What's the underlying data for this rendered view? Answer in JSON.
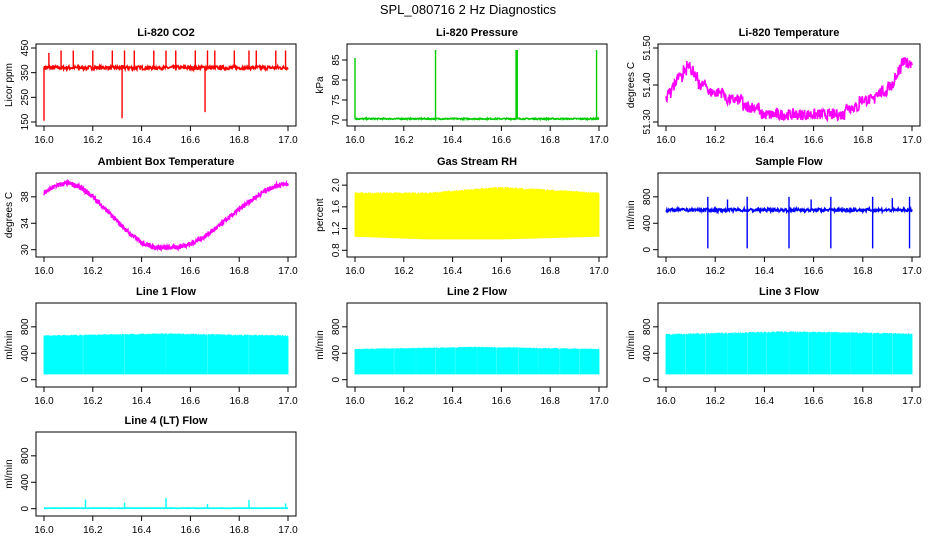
{
  "figure_title": "SPL_080716  2 Hz Diagnostics",
  "chart_data": [
    {
      "type": "line",
      "title": "Li-820 CO2",
      "xlabel": "",
      "ylabel": "Licor ppm",
      "color": "#ff0000",
      "xlim": [
        16.0,
        17.0
      ],
      "ylim": [
        150,
        450
      ],
      "xticks": [
        16.0,
        16.2,
        16.4,
        16.6,
        16.8,
        17.0
      ],
      "yticks": [
        150,
        250,
        350,
        450
      ],
      "ytick_labels": [
        "150",
        "250",
        "350",
        "450"
      ],
      "series": [
        {
          "pattern": "flat_spiky",
          "base": 370,
          "noise": 8,
          "spikes": [
            [
              16.02,
              430
            ],
            [
              16.07,
              440
            ],
            [
              16.12,
              440
            ],
            [
              16.2,
              440
            ],
            [
              16.28,
              440
            ],
            [
              16.33,
              440
            ],
            [
              16.37,
              440
            ],
            [
              16.45,
              440
            ],
            [
              16.5,
              440
            ],
            [
              16.54,
              440
            ],
            [
              16.62,
              440
            ],
            [
              16.67,
              440
            ],
            [
              16.7,
              440
            ],
            [
              16.78,
              440
            ],
            [
              16.84,
              440
            ],
            [
              16.87,
              440
            ],
            [
              16.95,
              440
            ],
            [
              16.99,
              440
            ],
            [
              16.32,
              165
            ],
            [
              16.66,
              190
            ],
            [
              16.0,
              155
            ]
          ]
        }
      ]
    },
    {
      "type": "line",
      "title": "Li-820 Pressure",
      "xlabel": "",
      "ylabel": "kPa",
      "color": "#00cc00",
      "xlim": [
        16.0,
        17.0
      ],
      "ylim": [
        69.5,
        88
      ],
      "xticks": [
        16.0,
        16.2,
        16.4,
        16.6,
        16.8,
        17.0
      ],
      "yticks": [
        70,
        75,
        80,
        85
      ],
      "ytick_labels": [
        "70",
        "75",
        "80",
        "85"
      ],
      "series": [
        {
          "pattern": "flat_spiky",
          "base": 70.3,
          "noise": 0.15,
          "spikes": [
            [
              16.0,
              85.5
            ],
            [
              16.33,
              87.5
            ],
            [
              16.66,
              87.5
            ],
            [
              16.665,
              87.5
            ],
            [
              16.99,
              87.5
            ]
          ]
        }
      ]
    },
    {
      "type": "line",
      "title": "Li-820 Temperature",
      "xlabel": "",
      "ylabel": "degrees C",
      "color": "#ff00ff",
      "xlim": [
        16.0,
        17.0
      ],
      "ylim": [
        51.3,
        51.5
      ],
      "xticks": [
        16.0,
        16.2,
        16.4,
        16.6,
        16.8,
        17.0
      ],
      "yticks": [
        51.3,
        51.4,
        51.5
      ],
      "ytick_labels": [
        "51.30",
        "51.40",
        "51.50"
      ],
      "series": [
        {
          "pattern": "steps",
          "points": [
            [
              16.0,
              51.36
            ],
            [
              16.03,
              51.4
            ],
            [
              16.07,
              51.43
            ],
            [
              16.09,
              51.46
            ],
            [
              16.11,
              51.43
            ],
            [
              16.14,
              51.4
            ],
            [
              16.2,
              51.38
            ],
            [
              16.28,
              51.36
            ],
            [
              16.38,
              51.33
            ],
            [
              16.45,
              51.31
            ],
            [
              16.55,
              51.31
            ],
            [
              16.68,
              51.31
            ],
            [
              16.75,
              51.34
            ],
            [
              16.82,
              51.36
            ],
            [
              16.88,
              51.38
            ],
            [
              16.92,
              51.4
            ],
            [
              16.95,
              51.44
            ],
            [
              16.97,
              51.47
            ],
            [
              17.0,
              51.45
            ]
          ],
          "band": 0.015
        }
      ]
    },
    {
      "type": "line",
      "title": "Ambient Box Temperature",
      "xlabel": "",
      "ylabel": "degrees C",
      "color": "#ff00ff",
      "xlim": [
        16.0,
        17.0
      ],
      "ylim": [
        29.5,
        41
      ],
      "xticks": [
        16.0,
        16.2,
        16.4,
        16.6,
        16.8,
        17.0
      ],
      "yticks": [
        30,
        34,
        38
      ],
      "ytick_labels": [
        "30",
        "34",
        "38"
      ],
      "series": [
        {
          "pattern": "curve",
          "points": [
            [
              16.0,
              38.6
            ],
            [
              16.05,
              39.7
            ],
            [
              16.1,
              40.1
            ],
            [
              16.15,
              39.4
            ],
            [
              16.2,
              38.0
            ],
            [
              16.25,
              36.2
            ],
            [
              16.3,
              34.3
            ],
            [
              16.35,
              32.5
            ],
            [
              16.4,
              31.1
            ],
            [
              16.45,
              30.4
            ],
            [
              16.5,
              30.3
            ],
            [
              16.55,
              30.4
            ],
            [
              16.6,
              30.9
            ],
            [
              16.65,
              31.8
            ],
            [
              16.7,
              33.1
            ],
            [
              16.75,
              34.6
            ],
            [
              16.8,
              36.1
            ],
            [
              16.85,
              37.5
            ],
            [
              16.9,
              38.8
            ],
            [
              16.95,
              39.7
            ],
            [
              17.0,
              40.0
            ]
          ],
          "band": 0.4
        }
      ]
    },
    {
      "type": "line",
      "title": "Gas Stream RH",
      "xlabel": "",
      "ylabel": "percent",
      "color": "#ffff00",
      "xlim": [
        16.0,
        17.0
      ],
      "ylim": [
        0.75,
        2.15
      ],
      "xticks": [
        16.0,
        16.2,
        16.4,
        16.6,
        16.8,
        17.0
      ],
      "yticks": [
        0.8,
        1.2,
        1.6,
        2.0
      ],
      "ytick_labels": [
        "0.8",
        "1.2",
        "1.6",
        "2.0"
      ],
      "series": [
        {
          "pattern": "dense_band",
          "low": [
            [
              16.0,
              1.05
            ],
            [
              16.3,
              1.0
            ],
            [
              16.6,
              1.0
            ],
            [
              17.0,
              1.05
            ]
          ],
          "high": [
            [
              16.0,
              1.85
            ],
            [
              16.3,
              1.85
            ],
            [
              16.6,
              1.95
            ],
            [
              17.0,
              1.85
            ]
          ]
        }
      ]
    },
    {
      "type": "line",
      "title": "Sample Flow",
      "xlabel": "",
      "ylabel": "ml/min",
      "color": "#0000ff",
      "xlim": [
        16.0,
        17.0
      ],
      "ylim": [
        -50,
        1100
      ],
      "xticks": [
        16.0,
        16.2,
        16.4,
        16.6,
        16.8,
        17.0
      ],
      "yticks": [
        0,
        400,
        800
      ],
      "ytick_labels": [
        "0",
        "400",
        "800"
      ],
      "series": [
        {
          "pattern": "flat_spiky",
          "base": 600,
          "noise": 25,
          "spikes": [
            [
              16.17,
              20
            ],
            [
              16.33,
              20
            ],
            [
              16.5,
              20
            ],
            [
              16.67,
              20
            ],
            [
              16.84,
              20
            ],
            [
              16.99,
              20
            ],
            [
              16.17,
              800
            ],
            [
              16.33,
              800
            ],
            [
              16.5,
              800
            ],
            [
              16.67,
              800
            ],
            [
              16.84,
              800
            ],
            [
              16.99,
              800
            ],
            [
              16.25,
              760
            ],
            [
              16.59,
              760
            ],
            [
              16.92,
              780
            ]
          ]
        }
      ]
    },
    {
      "type": "line",
      "title": "Line 1 Flow",
      "xlabel": "",
      "ylabel": "ml/min",
      "color": "#00ffff",
      "xlim": [
        16.0,
        17.0
      ],
      "ylim": [
        -50,
        1100
      ],
      "xticks": [
        16.0,
        16.2,
        16.4,
        16.6,
        16.8,
        17.0
      ],
      "yticks": [
        0,
        400,
        800
      ],
      "ytick_labels": [
        "0",
        "400",
        "800"
      ],
      "series": [
        {
          "pattern": "dense_band",
          "gaps": [
            16.16,
            16.33,
            16.5,
            16.67,
            16.84
          ],
          "low": [
            [
              16.0,
              80
            ],
            [
              17.0,
              80
            ]
          ],
          "high": [
            [
              16.0,
              660
            ],
            [
              16.5,
              690
            ],
            [
              17.0,
              660
            ]
          ]
        }
      ]
    },
    {
      "type": "line",
      "title": "Line 2 Flow",
      "xlabel": "",
      "ylabel": "ml/min",
      "color": "#00ffff",
      "xlim": [
        16.0,
        17.0
      ],
      "ylim": [
        -50,
        1100
      ],
      "xticks": [
        16.0,
        16.2,
        16.4,
        16.6,
        16.8,
        17.0
      ],
      "yticks": [
        0,
        400,
        800
      ],
      "ytick_labels": [
        "0",
        "400",
        "800"
      ],
      "series": [
        {
          "pattern": "dense_band",
          "gaps": [
            16.16,
            16.25,
            16.33,
            16.41,
            16.5,
            16.58,
            16.67,
            16.75,
            16.84,
            16.92
          ],
          "low": [
            [
              16.0,
              80
            ],
            [
              17.0,
              80
            ]
          ],
          "high": [
            [
              16.0,
              460
            ],
            [
              16.5,
              490
            ],
            [
              17.0,
              460
            ]
          ]
        }
      ]
    },
    {
      "type": "line",
      "title": "Line 3 Flow",
      "xlabel": "",
      "ylabel": "ml/min",
      "color": "#00ffff",
      "xlim": [
        16.0,
        17.0
      ],
      "ylim": [
        -50,
        1100
      ],
      "xticks": [
        16.0,
        16.2,
        16.4,
        16.6,
        16.8,
        17.0
      ],
      "yticks": [
        0,
        400,
        800
      ],
      "ytick_labels": [
        "0",
        "400",
        "800"
      ],
      "series": [
        {
          "pattern": "dense_band",
          "gaps": [
            16.08,
            16.16,
            16.25,
            16.33,
            16.41,
            16.5,
            16.58,
            16.67,
            16.75,
            16.84,
            16.92
          ],
          "low": [
            [
              16.0,
              80
            ],
            [
              17.0,
              80
            ]
          ],
          "high": [
            [
              16.0,
              680
            ],
            [
              16.5,
              720
            ],
            [
              17.0,
              690
            ]
          ]
        }
      ]
    },
    {
      "type": "line",
      "title": "Line 4 (LT) Flow",
      "xlabel": "",
      "ylabel": "ml/min",
      "color": "#00ffff",
      "xlim": [
        16.0,
        17.0
      ],
      "ylim": [
        -50,
        1100
      ],
      "xticks": [
        16.0,
        16.2,
        16.4,
        16.6,
        16.8,
        17.0
      ],
      "yticks": [
        0,
        400,
        800
      ],
      "ytick_labels": [
        "0",
        "400",
        "800"
      ],
      "series": [
        {
          "pattern": "flat_spiky",
          "base": 8,
          "noise": 3,
          "spikes": [
            [
              16.17,
              140
            ],
            [
              16.33,
              90
            ],
            [
              16.5,
              160
            ],
            [
              16.67,
              70
            ],
            [
              16.84,
              130
            ],
            [
              16.99,
              80
            ]
          ]
        }
      ]
    }
  ]
}
